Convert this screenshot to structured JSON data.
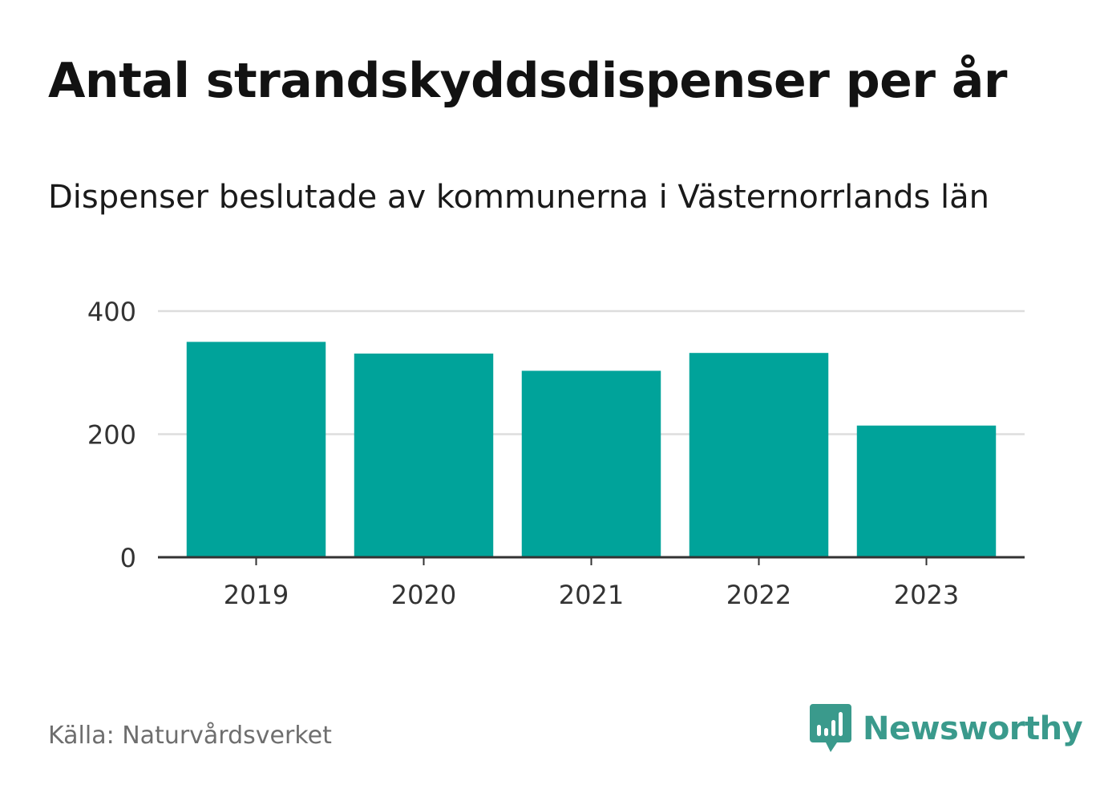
{
  "header": {
    "title": "Antal strandskyddsdispenser per år",
    "subtitle": "Dispenser beslutade av kommunerna i Västernorrlands län"
  },
  "footer": {
    "source": "Källa: Naturvårdsverket",
    "brand": "Newsworthy",
    "brand_icon": "bar-chart-speech-bubble-icon"
  },
  "colors": {
    "bar": "#00a39a",
    "grid": "#dddddd",
    "axis": "#333333",
    "brand": "#3a9a8c"
  },
  "chart_data": {
    "type": "bar",
    "categories": [
      "2019",
      "2020",
      "2021",
      "2022",
      "2023"
    ],
    "values": [
      350,
      331,
      303,
      332,
      214
    ],
    "ylim": [
      0,
      400
    ],
    "yticks": [
      0,
      200,
      400
    ],
    "grid": true,
    "legend": "none"
  }
}
